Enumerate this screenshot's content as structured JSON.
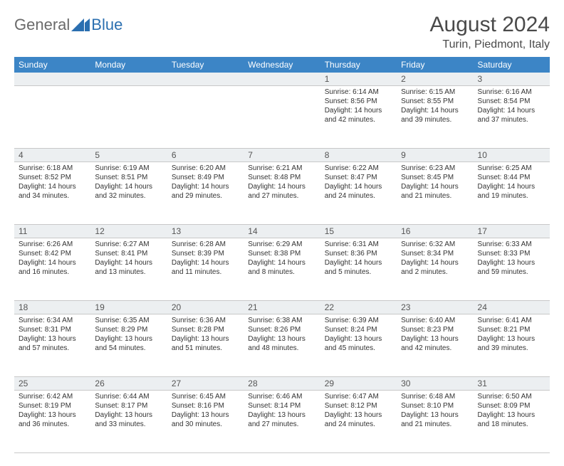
{
  "logo": {
    "word1": "General",
    "word2": "Blue"
  },
  "title": "August 2024",
  "location": "Turin, Piedmont, Italy",
  "weekdays": [
    "Sunday",
    "Monday",
    "Tuesday",
    "Wednesday",
    "Thursday",
    "Friday",
    "Saturday"
  ],
  "colors": {
    "header_bg": "#3c85c6",
    "header_text": "#ffffff",
    "daynum_bg": "#eceff1",
    "text": "#333333",
    "border": "#c8c8c8",
    "logo_gray": "#6a6a6a",
    "logo_blue": "#2b6fb0"
  },
  "weeks": [
    [
      null,
      null,
      null,
      null,
      {
        "n": "1",
        "sunrise": "6:14 AM",
        "sunset": "8:56 PM",
        "daylight": "14 hours and 42 minutes."
      },
      {
        "n": "2",
        "sunrise": "6:15 AM",
        "sunset": "8:55 PM",
        "daylight": "14 hours and 39 minutes."
      },
      {
        "n": "3",
        "sunrise": "6:16 AM",
        "sunset": "8:54 PM",
        "daylight": "14 hours and 37 minutes."
      }
    ],
    [
      {
        "n": "4",
        "sunrise": "6:18 AM",
        "sunset": "8:52 PM",
        "daylight": "14 hours and 34 minutes."
      },
      {
        "n": "5",
        "sunrise": "6:19 AM",
        "sunset": "8:51 PM",
        "daylight": "14 hours and 32 minutes."
      },
      {
        "n": "6",
        "sunrise": "6:20 AM",
        "sunset": "8:49 PM",
        "daylight": "14 hours and 29 minutes."
      },
      {
        "n": "7",
        "sunrise": "6:21 AM",
        "sunset": "8:48 PM",
        "daylight": "14 hours and 27 minutes."
      },
      {
        "n": "8",
        "sunrise": "6:22 AM",
        "sunset": "8:47 PM",
        "daylight": "14 hours and 24 minutes."
      },
      {
        "n": "9",
        "sunrise": "6:23 AM",
        "sunset": "8:45 PM",
        "daylight": "14 hours and 21 minutes."
      },
      {
        "n": "10",
        "sunrise": "6:25 AM",
        "sunset": "8:44 PM",
        "daylight": "14 hours and 19 minutes."
      }
    ],
    [
      {
        "n": "11",
        "sunrise": "6:26 AM",
        "sunset": "8:42 PM",
        "daylight": "14 hours and 16 minutes."
      },
      {
        "n": "12",
        "sunrise": "6:27 AM",
        "sunset": "8:41 PM",
        "daylight": "14 hours and 13 minutes."
      },
      {
        "n": "13",
        "sunrise": "6:28 AM",
        "sunset": "8:39 PM",
        "daylight": "14 hours and 11 minutes."
      },
      {
        "n": "14",
        "sunrise": "6:29 AM",
        "sunset": "8:38 PM",
        "daylight": "14 hours and 8 minutes."
      },
      {
        "n": "15",
        "sunrise": "6:31 AM",
        "sunset": "8:36 PM",
        "daylight": "14 hours and 5 minutes."
      },
      {
        "n": "16",
        "sunrise": "6:32 AM",
        "sunset": "8:34 PM",
        "daylight": "14 hours and 2 minutes."
      },
      {
        "n": "17",
        "sunrise": "6:33 AM",
        "sunset": "8:33 PM",
        "daylight": "13 hours and 59 minutes."
      }
    ],
    [
      {
        "n": "18",
        "sunrise": "6:34 AM",
        "sunset": "8:31 PM",
        "daylight": "13 hours and 57 minutes."
      },
      {
        "n": "19",
        "sunrise": "6:35 AM",
        "sunset": "8:29 PM",
        "daylight": "13 hours and 54 minutes."
      },
      {
        "n": "20",
        "sunrise": "6:36 AM",
        "sunset": "8:28 PM",
        "daylight": "13 hours and 51 minutes."
      },
      {
        "n": "21",
        "sunrise": "6:38 AM",
        "sunset": "8:26 PM",
        "daylight": "13 hours and 48 minutes."
      },
      {
        "n": "22",
        "sunrise": "6:39 AM",
        "sunset": "8:24 PM",
        "daylight": "13 hours and 45 minutes."
      },
      {
        "n": "23",
        "sunrise": "6:40 AM",
        "sunset": "8:23 PM",
        "daylight": "13 hours and 42 minutes."
      },
      {
        "n": "24",
        "sunrise": "6:41 AM",
        "sunset": "8:21 PM",
        "daylight": "13 hours and 39 minutes."
      }
    ],
    [
      {
        "n": "25",
        "sunrise": "6:42 AM",
        "sunset": "8:19 PM",
        "daylight": "13 hours and 36 minutes."
      },
      {
        "n": "26",
        "sunrise": "6:44 AM",
        "sunset": "8:17 PM",
        "daylight": "13 hours and 33 minutes."
      },
      {
        "n": "27",
        "sunrise": "6:45 AM",
        "sunset": "8:16 PM",
        "daylight": "13 hours and 30 minutes."
      },
      {
        "n": "28",
        "sunrise": "6:46 AM",
        "sunset": "8:14 PM",
        "daylight": "13 hours and 27 minutes."
      },
      {
        "n": "29",
        "sunrise": "6:47 AM",
        "sunset": "8:12 PM",
        "daylight": "13 hours and 24 minutes."
      },
      {
        "n": "30",
        "sunrise": "6:48 AM",
        "sunset": "8:10 PM",
        "daylight": "13 hours and 21 minutes."
      },
      {
        "n": "31",
        "sunrise": "6:50 AM",
        "sunset": "8:09 PM",
        "daylight": "13 hours and 18 minutes."
      }
    ]
  ]
}
